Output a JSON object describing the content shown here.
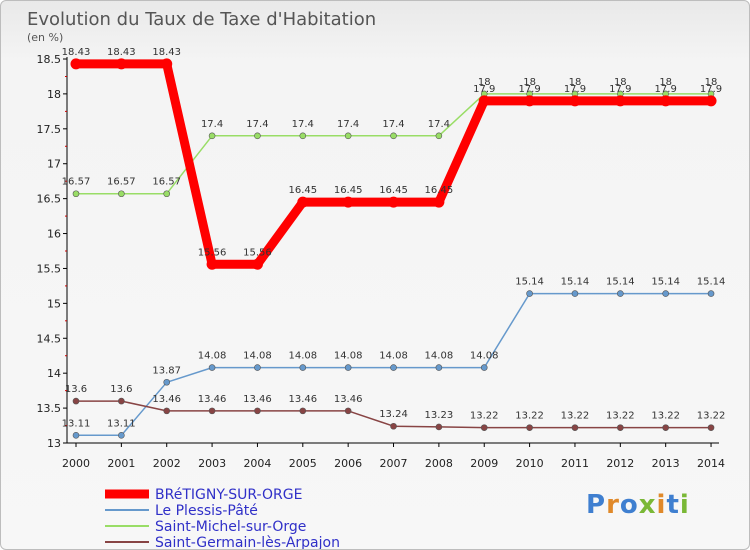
{
  "chart_data": {
    "type": "line",
    "title": "Evolution du Taux de Taxe d'Habitation",
    "unit_label": "(en %)",
    "x": [
      "2000",
      "2001",
      "2002",
      "2003",
      "2004",
      "2005",
      "2006",
      "2007",
      "2008",
      "2009",
      "2010",
      "2011",
      "2012",
      "2013",
      "2014"
    ],
    "ylim": [
      13,
      18.5
    ],
    "yticks": [
      "13",
      "13.5",
      "14",
      "14.5",
      "15",
      "15.5",
      "16",
      "16.5",
      "17",
      "17.5",
      "18",
      "18.5"
    ],
    "grid": false,
    "legend_position": "bottom-left",
    "series": [
      {
        "name": "BRéTIGNY-SUR-ORGE",
        "color": "#ff0000",
        "emphasis": true,
        "values": [
          18.43,
          18.43,
          18.43,
          15.56,
          15.56,
          16.45,
          16.45,
          16.45,
          16.45,
          17.9,
          17.9,
          17.9,
          17.9,
          17.9,
          17.9
        ],
        "labels": [
          "18.43",
          "18.43",
          "18.43",
          "15.56",
          "15.56",
          "16.45",
          "16.45",
          "16.45",
          "16.45",
          "17.9",
          "17.9",
          "17.9",
          "17.9",
          "17.9",
          "17.9"
        ]
      },
      {
        "name": "Le Plessis-Pâté",
        "color": "#6699cc",
        "emphasis": false,
        "values": [
          13.11,
          13.11,
          13.87,
          14.08,
          14.08,
          14.08,
          14.08,
          14.08,
          14.08,
          14.08,
          15.14,
          15.14,
          15.14,
          15.14,
          15.14
        ],
        "labels": [
          "13.11",
          "13.11",
          "13.87",
          "14.08",
          "14.08",
          "14.08",
          "14.08",
          "14.08",
          "14.08",
          "14.08",
          "15.14",
          "15.14",
          "15.14",
          "15.14",
          "15.14"
        ]
      },
      {
        "name": "Saint-Michel-sur-Orge",
        "color": "#99dd66",
        "emphasis": false,
        "values": [
          16.57,
          16.57,
          16.57,
          17.4,
          17.4,
          17.4,
          17.4,
          17.4,
          17.4,
          18,
          18,
          18,
          18,
          18,
          18
        ],
        "labels": [
          "16.57",
          "16.57",
          "16.57",
          "17.4",
          "17.4",
          "17.4",
          "17.4",
          "17.4",
          "17.4",
          "18",
          "18",
          "18",
          "18",
          "18",
          "18"
        ]
      },
      {
        "name": "Saint-Germain-lès-Arpajon",
        "color": "#884444",
        "emphasis": false,
        "values": [
          13.6,
          13.6,
          13.46,
          13.46,
          13.46,
          13.46,
          13.46,
          13.24,
          13.23,
          13.22,
          13.22,
          13.22,
          13.22,
          13.22,
          13.22
        ],
        "labels": [
          "13.6",
          "13.6",
          "13.46",
          "13.46",
          "13.46",
          "13.46",
          "13.46",
          "13.24",
          "13.23",
          "13.22",
          "13.22",
          "13.22",
          "13.22",
          "13.22",
          "13.22"
        ]
      }
    ]
  },
  "logo": {
    "text": "Proxiti",
    "letter_colors": [
      "#3f7fd0",
      "#e0892a",
      "#3f7fd0",
      "#7ab836",
      "#e0892a",
      "#3f7fd0",
      "#7ab836"
    ]
  }
}
